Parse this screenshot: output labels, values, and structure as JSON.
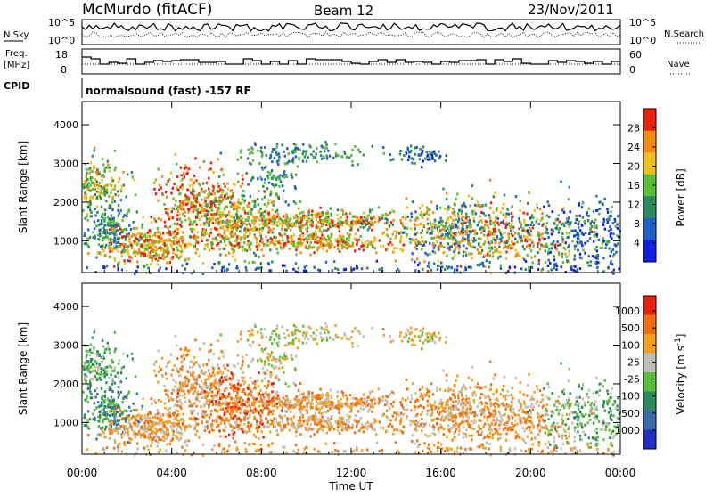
{
  "header": {
    "station": "McMurdo (fitACF)",
    "beam": "Beam 12",
    "date": "23/Nov/2011"
  },
  "strip_panels": {
    "sky": {
      "left_label": "N.Sky",
      "right_label": "N.Search",
      "left_ticks": [
        "10^5",
        "10^0"
      ],
      "right_ticks": [
        "10^5",
        "10^0"
      ]
    },
    "freq": {
      "left_label_1": "Freq.",
      "left_label_2": "[MHz]",
      "right_label": "Nave",
      "left_ticks": [
        "18",
        "8"
      ],
      "right_ticks": [
        "60",
        "0"
      ]
    },
    "cpid": {
      "label": "CPID",
      "text": "normalsound (fast) -157 RF"
    }
  },
  "chart_data": [
    {
      "type": "heatmap",
      "title": "",
      "ylabel": "Slant Range [km]",
      "xlabel": "",
      "x_ticks": [
        "00:00",
        "04:00",
        "08:00",
        "12:00",
        "16:00",
        "20:00",
        "00:00"
      ],
      "y_ticks": [
        "1000",
        "2000",
        "3000",
        "4000"
      ],
      "ylim": [
        180,
        4600
      ],
      "colorbar": {
        "label": "Power [dB]",
        "ticks": [
          "4",
          "8",
          "12",
          "16",
          "20",
          "24",
          "28"
        ],
        "colors": [
          "#1020e0",
          "#1e60c8",
          "#2e8a5a",
          "#5cbf3a",
          "#f0c020",
          "#f58c10",
          "#e82010"
        ]
      }
    },
    {
      "type": "heatmap",
      "title": "",
      "ylabel": "Slant Range [km]",
      "xlabel": "Time UT",
      "x_ticks": [
        "00:00",
        "04:00",
        "08:00",
        "12:00",
        "16:00",
        "20:00",
        "00:00"
      ],
      "y_ticks": [
        "1000",
        "2000",
        "3000",
        "4000"
      ],
      "ylim": [
        180,
        4600
      ],
      "colorbar": {
        "label": "Velocity [m s-1]",
        "ticks": [
          "1000",
          "500",
          "100",
          "25",
          "-25",
          "-100",
          "-500",
          "-1000"
        ],
        "colors": [
          "#2030c0",
          "#3a6aa8",
          "#2e8a5a",
          "#5cbf3a",
          "#c0c0b8",
          "#f5a020",
          "#f07010",
          "#e82010"
        ]
      }
    }
  ]
}
